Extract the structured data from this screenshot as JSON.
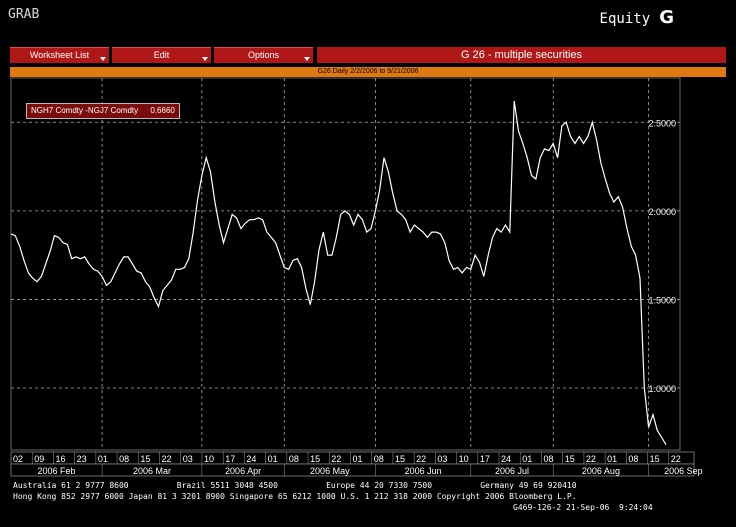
{
  "header": {
    "left_label": "GRAB",
    "right_label": "Equity",
    "right_letter": "G"
  },
  "menu": {
    "worksheet_list": "Worksheet List",
    "edit": "Edit",
    "options": "Options",
    "title": "G 26 - multiple securities"
  },
  "subtitle": "G26 Daily 2/2/2006 to 9/21/2006",
  "legend": {
    "label": "NGH7 Comdty -NGJ7 Comdty",
    "value": "0.6660"
  },
  "colors": {
    "menu_red": "#b01818",
    "orange_bar": "#e07a10",
    "line": "#ffffff",
    "grid": "#aaaaaa"
  },
  "chart_data": {
    "type": "line",
    "y_ticks": [
      "2.5000",
      "2.0000",
      "1.5000",
      "1.0000"
    ],
    "y_tick_values": [
      2.5,
      2.0,
      1.5,
      1.0
    ],
    "ylim": [
      0.65,
      2.75
    ],
    "xlim": [
      0,
      163
    ],
    "x_day_labels": [
      "02",
      "09",
      "16",
      "23",
      "01",
      "08",
      "15",
      "22",
      "03",
      "10",
      "17",
      "24",
      "01",
      "08",
      "15",
      "22",
      "01",
      "08",
      "15",
      "22",
      "03",
      "10",
      "17",
      "24",
      "01",
      "08",
      "15",
      "22",
      "01",
      "08",
      "15",
      "22"
    ],
    "x_day_positions": [
      1,
      7,
      13,
      19,
      24,
      30,
      36,
      42,
      48,
      54,
      60,
      66,
      72,
      78,
      84,
      90,
      96,
      102,
      108,
      114,
      120,
      126,
      132,
      138,
      144,
      150,
      156,
      162,
      168,
      174,
      180,
      186
    ],
    "month_labels": [
      "2006 Feb",
      "2006 Mar",
      "2006 Apr",
      "2006 May",
      "2006 Jun",
      "2006 Jul",
      "2006 Aug",
      "2006 Sep"
    ],
    "month_boundaries": [
      0,
      21,
      44,
      63,
      84,
      106,
      125,
      147,
      163
    ],
    "grid": true,
    "series": [
      {
        "name": "NGH7 Comdty -NGJ7 Comdty",
        "values": [
          1.87,
          1.86,
          1.8,
          1.72,
          1.65,
          1.62,
          1.6,
          1.63,
          1.7,
          1.77,
          1.86,
          1.85,
          1.82,
          1.81,
          1.73,
          1.74,
          1.73,
          1.74,
          1.7,
          1.67,
          1.66,
          1.63,
          1.58,
          1.6,
          1.65,
          1.7,
          1.74,
          1.74,
          1.7,
          1.66,
          1.65,
          1.6,
          1.57,
          1.51,
          1.46,
          1.55,
          1.58,
          1.61,
          1.67,
          1.67,
          1.68,
          1.73,
          1.88,
          2.06,
          2.2,
          2.3,
          2.22,
          2.05,
          1.92,
          1.82,
          1.9,
          1.98,
          1.96,
          1.9,
          1.93,
          1.95,
          1.95,
          1.96,
          1.95,
          1.88,
          1.85,
          1.82,
          1.75,
          1.68,
          1.67,
          1.72,
          1.73,
          1.68,
          1.56,
          1.47,
          1.6,
          1.78,
          1.88,
          1.75,
          1.75,
          1.85,
          1.98,
          2.0,
          1.98,
          1.92,
          1.98,
          1.95,
          1.88,
          1.9,
          2.0,
          2.12,
          2.3,
          2.22,
          2.1,
          2.0,
          1.98,
          1.95,
          1.88,
          1.92,
          1.9,
          1.88,
          1.85,
          1.88,
          1.88,
          1.87,
          1.82,
          1.72,
          1.67,
          1.68,
          1.65,
          1.68,
          1.67,
          1.75,
          1.71,
          1.63,
          1.75,
          1.85,
          1.9,
          1.88,
          1.92,
          1.88,
          2.62,
          2.45,
          2.38,
          2.3,
          2.2,
          2.18,
          2.3,
          2.35,
          2.34,
          2.38,
          2.3,
          2.48,
          2.5,
          2.42,
          2.38,
          2.42,
          2.38,
          2.42,
          2.5,
          2.4,
          2.27,
          2.18,
          2.1,
          2.05,
          2.08,
          2.02,
          1.9,
          1.8,
          1.75,
          1.62,
          1.0,
          0.78,
          0.85,
          0.76,
          0.72,
          0.68
        ]
      }
    ]
  },
  "footer": {
    "line1": "Australia 61 2 9777 8600          Brazil 5511 3048 4500          Europe 44 20 7330 7500          Germany 49 69 920410",
    "line2": "Hong Kong 852 2977 6000 Japan 81 3 3201 8900 Singapore 65 6212 1000 U.S. 1 212 318 2000 Copyright 2006 Bloomberg L.P.",
    "line3": "G469-126-2 21-Sep-06  9:24:04"
  }
}
